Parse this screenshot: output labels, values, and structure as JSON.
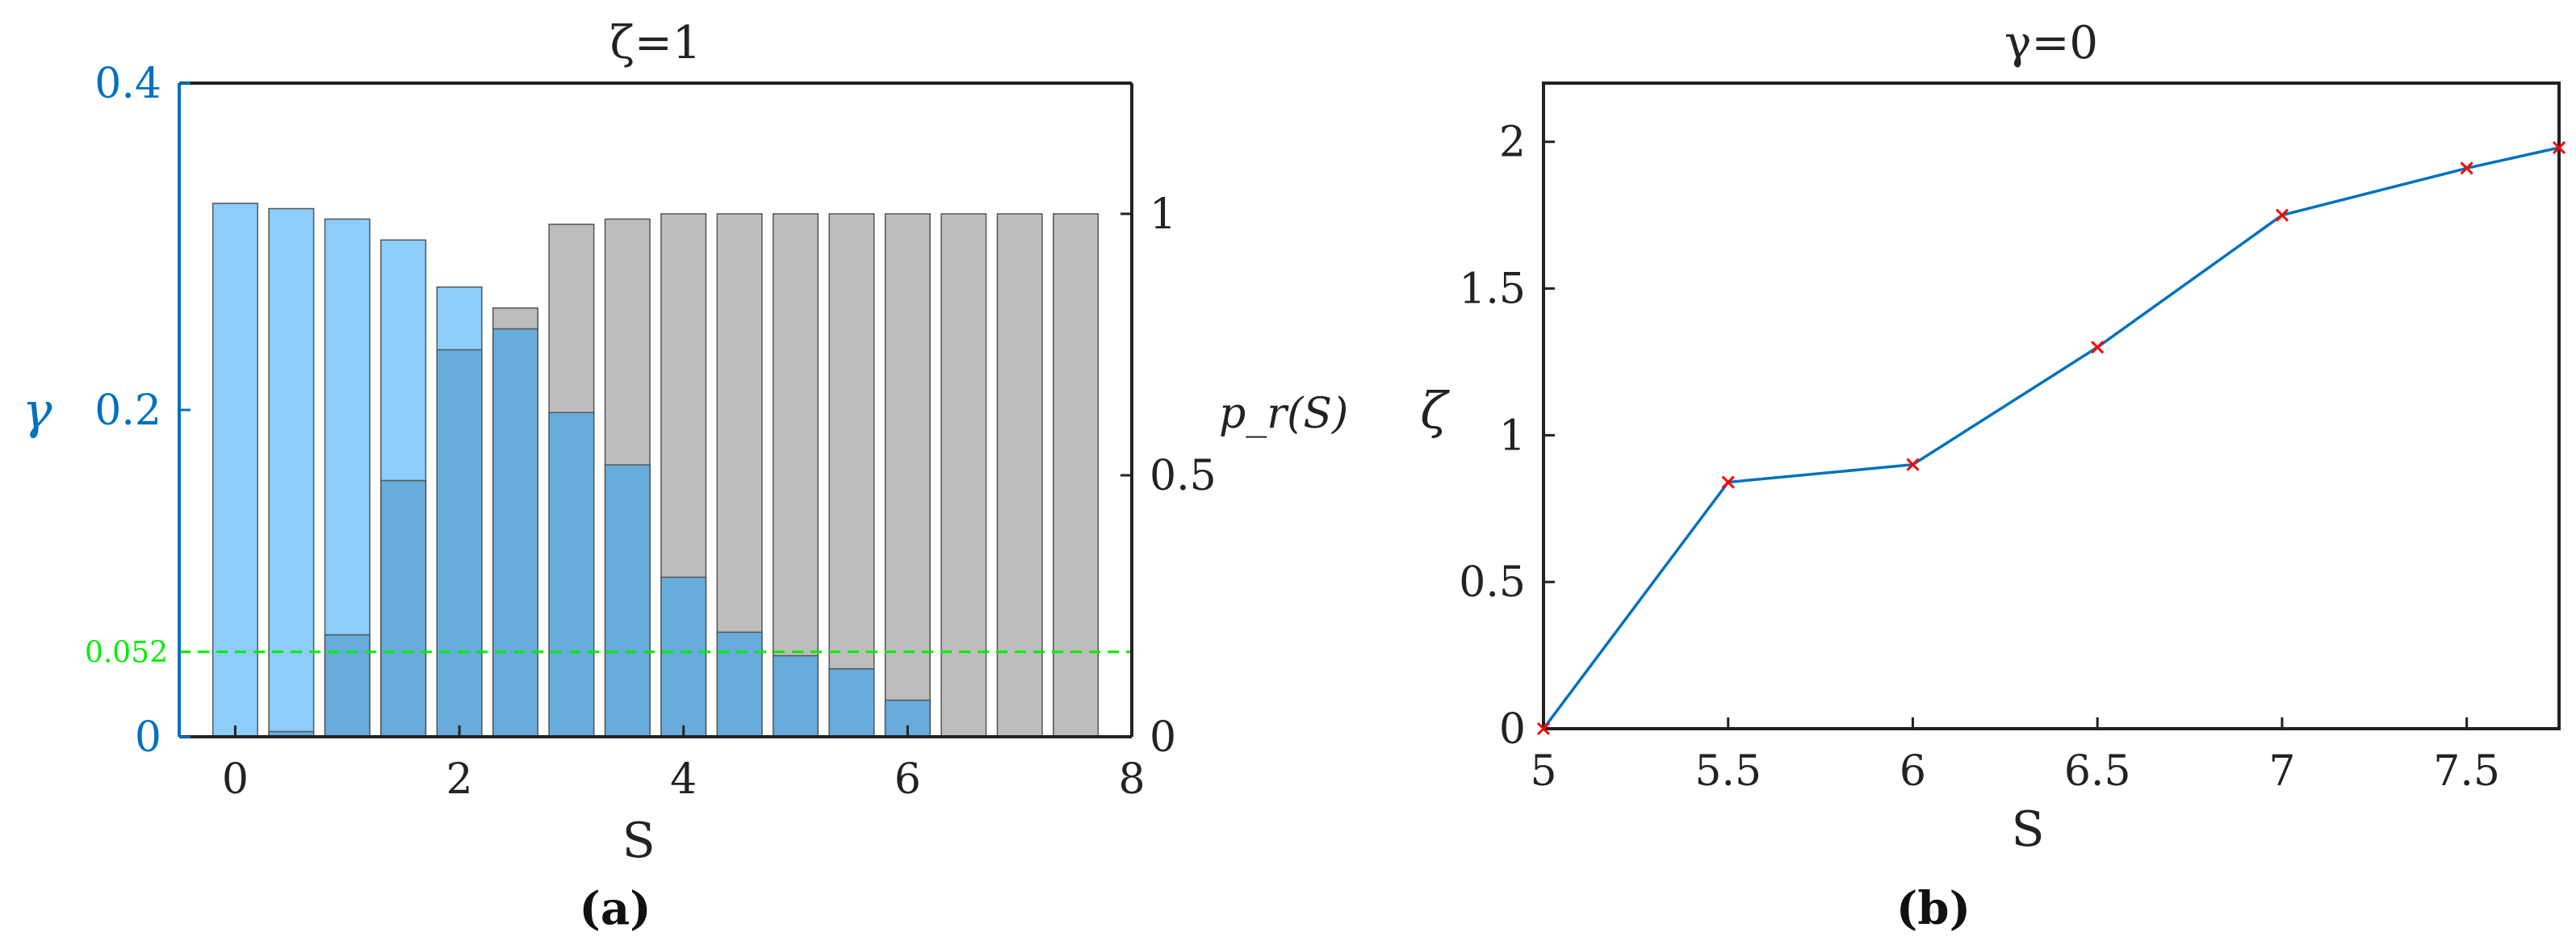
{
  "chart_data": [
    {
      "type": "bar",
      "panel_label": "(a)",
      "title": "ζ=1",
      "xlabel": "S",
      "ylabel_left": "γ",
      "ylabel_right": "p_r(S)",
      "x": [
        0,
        0.5,
        1,
        1.5,
        2,
        2.5,
        3,
        3.5,
        4,
        4.5,
        5,
        5.5,
        6,
        6.5,
        7,
        7.5
      ],
      "xlim": [
        -0.5,
        8
      ],
      "xticks": [
        0,
        2,
        4,
        6,
        8
      ],
      "left_axis": {
        "ylim": [
          0,
          0.4
        ],
        "yticks": [
          0,
          0.2,
          0.4
        ],
        "color": "#0072BD"
      },
      "right_axis": {
        "ylim": [
          0,
          1.25
        ],
        "yticks": [
          0,
          0.5,
          1
        ]
      },
      "series": [
        {
          "name": "",
          "axis": "right",
          "color": "#bdbdbd",
          "values": [
            0,
            0,
            0,
            0,
            0,
            0.82,
            0.98,
            0.99,
            1.0,
            1.0,
            1.0,
            1.0,
            1.0,
            1.0,
            1.0,
            1.0
          ]
        },
        {
          "name": "",
          "axis": "right",
          "color": "#8ccdfc",
          "values": [
            1.02,
            1.01,
            0.99,
            0.95,
            0.86,
            0.78,
            0,
            0,
            0,
            0,
            0,
            0,
            0,
            0,
            0,
            0
          ]
        },
        {
          "name": "",
          "axis": "right",
          "color": "#67acdb",
          "values": [
            0,
            0.01,
            0.195,
            0.49,
            0.74,
            0.78,
            0.62,
            0.52,
            0.305,
            0.2,
            0.155,
            0.13,
            0.07,
            0,
            0,
            0
          ]
        }
      ],
      "reference_line": {
        "value": 0.052,
        "axis": "left",
        "label": "0.052",
        "color": "#00ee00"
      }
    },
    {
      "type": "line",
      "panel_label": "(b)",
      "title": "γ=0",
      "xlabel": "S",
      "ylabel": "ζ",
      "xlim": [
        5,
        7.75
      ],
      "ylim": [
        0,
        2.2
      ],
      "xticks": [
        "5",
        "5.5",
        "6",
        "6.5",
        "7",
        "7.5"
      ],
      "yticks": [
        "0",
        "0.5",
        "1",
        "1.5",
        "2"
      ],
      "series": [
        {
          "name": "",
          "color": "#0072BD",
          "marker_color": "#ff0000",
          "x": [
            5,
            5.5,
            6,
            6.5,
            7,
            7.5,
            7.75
          ],
          "y": [
            0,
            0.84,
            0.9,
            1.3,
            1.75,
            1.91,
            1.98
          ]
        }
      ]
    }
  ]
}
